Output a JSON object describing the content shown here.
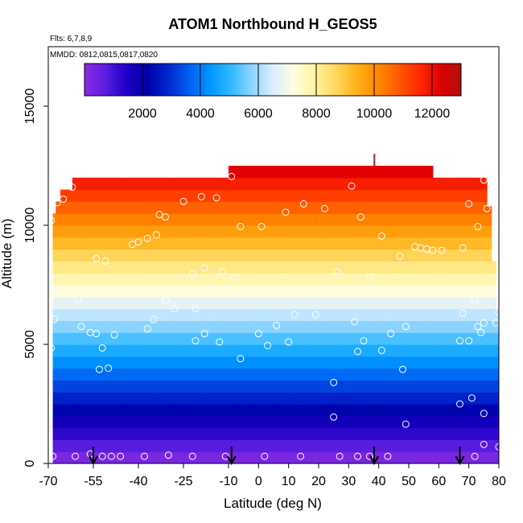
{
  "chart_data": {
    "type": "heatmap",
    "title": "ATOM1 Northbound H_GEOS5",
    "annotations": [
      "Flts: 6,7,8,9",
      "MMDD: 0812,0815,0817,0820"
    ],
    "xlabel": "Latitude (deg N)",
    "ylabel": "Altitude (m)",
    "xlim": [
      -70,
      80
    ],
    "ylim": [
      0,
      17500
    ],
    "x_ticks": [
      -70,
      -55,
      -40,
      -25,
      -10,
      0,
      10,
      20,
      30,
      40,
      50,
      60,
      70,
      80
    ],
    "y_ticks": [
      0,
      5000,
      10000,
      15000
    ],
    "colorbar": {
      "range": [
        0,
        13000
      ],
      "ticks": [
        2000,
        4000,
        6000,
        8000,
        10000,
        12000
      ],
      "colors": [
        "#8a2be2",
        "#5a1ee0",
        "#1f00c8",
        "#0000a8",
        "#0028d0",
        "#0060f0",
        "#0096ff",
        "#30b8ff",
        "#8fd4ff",
        "#d8eeff",
        "#fffde0",
        "#fff3a0",
        "#ffd860",
        "#ffb21a",
        "#ff8a00",
        "#ff5a00",
        "#ff2a00",
        "#e00000",
        "#b01010"
      ]
    },
    "series": [
      {
        "name": "GEOS5 altitude field",
        "value": "altitude",
        "lat_range": [
          -68.5,
          80
        ],
        "altitude_top_by_latitude": [
          {
            "lat": -68.5,
            "top": 10500
          },
          {
            "lat": -67.5,
            "top": 11000
          },
          {
            "lat": -66,
            "top": 11500
          },
          {
            "lat": -62,
            "top": 12000
          },
          {
            "lat": -10,
            "top": 12000
          },
          {
            "lat": -10,
            "top": 12500
          },
          {
            "lat": 58,
            "top": 12500
          },
          {
            "lat": 58,
            "top": 12000
          },
          {
            "lat": 76,
            "top": 12000
          },
          {
            "lat": 76,
            "top": 10800
          },
          {
            "lat": 77.5,
            "top": 8500
          },
          {
            "lat": 79,
            "top": 6500
          },
          {
            "lat": 80,
            "top": 6200
          }
        ]
      },
      {
        "name": "observations",
        "points": [
          {
            "x": -68.5,
            "y": 300
          },
          {
            "x": -61,
            "y": 300
          },
          {
            "x": -56,
            "y": 400
          },
          {
            "x": -52,
            "y": 300
          },
          {
            "x": -49,
            "y": 300
          },
          {
            "x": -46,
            "y": 300
          },
          {
            "x": -38,
            "y": 300
          },
          {
            "x": -30,
            "y": 350
          },
          {
            "x": -22,
            "y": 300
          },
          {
            "x": -11,
            "y": 300
          },
          {
            "x": 2,
            "y": 300
          },
          {
            "x": 14,
            "y": 300
          },
          {
            "x": 27,
            "y": 300
          },
          {
            "x": 33,
            "y": 300
          },
          {
            "x": 37,
            "y": 300
          },
          {
            "x": 43,
            "y": 300
          },
          {
            "x": 72,
            "y": 300
          },
          {
            "x": 75,
            "y": 800
          },
          {
            "x": 80,
            "y": 700
          },
          {
            "x": 25,
            "y": 1950
          },
          {
            "x": 49,
            "y": 1650
          },
          {
            "x": 67,
            "y": 2500
          },
          {
            "x": 71,
            "y": 2750
          },
          {
            "x": 75,
            "y": 2100
          },
          {
            "x": 25,
            "y": 3400
          },
          {
            "x": -50,
            "y": 4000
          },
          {
            "x": -53,
            "y": 3950
          },
          {
            "x": -6,
            "y": 4400
          },
          {
            "x": 48,
            "y": 3950
          },
          {
            "x": -69,
            "y": 4850
          },
          {
            "x": -52,
            "y": 4850
          },
          {
            "x": -21,
            "y": 5150
          },
          {
            "x": -13,
            "y": 5100
          },
          {
            "x": 3,
            "y": 4950
          },
          {
            "x": 10,
            "y": 5100
          },
          {
            "x": 33,
            "y": 4700
          },
          {
            "x": 35,
            "y": 5150
          },
          {
            "x": 41,
            "y": 4750
          },
          {
            "x": 44,
            "y": 5450
          },
          {
            "x": 49,
            "y": 5750
          },
          {
            "x": 67,
            "y": 5150
          },
          {
            "x": 70,
            "y": 5150
          },
          {
            "x": 73,
            "y": 5750
          },
          {
            "x": 74,
            "y": 5500
          },
          {
            "x": 75,
            "y": 5900
          },
          {
            "x": 79,
            "y": 5900
          },
          {
            "x": 80,
            "y": 6350
          },
          {
            "x": -68,
            "y": 6050
          },
          {
            "x": -59,
            "y": 5750
          },
          {
            "x": -56,
            "y": 5500
          },
          {
            "x": -54,
            "y": 5450
          },
          {
            "x": -48,
            "y": 5400
          },
          {
            "x": -37,
            "y": 5650
          },
          {
            "x": -35,
            "y": 6050
          },
          {
            "x": -18,
            "y": 5450
          },
          {
            "x": 0,
            "y": 5450
          },
          {
            "x": 6,
            "y": 5800
          },
          {
            "x": 19,
            "y": 6250
          },
          {
            "x": 32,
            "y": 5950
          },
          {
            "x": -60,
            "y": 6900
          },
          {
            "x": -31,
            "y": 6850
          },
          {
            "x": -28,
            "y": 6500
          },
          {
            "x": -21,
            "y": 6500
          },
          {
            "x": 12,
            "y": 6250
          },
          {
            "x": 68,
            "y": 6300
          },
          {
            "x": 72,
            "y": 6900
          },
          {
            "x": -54,
            "y": 8600
          },
          {
            "x": -51,
            "y": 8500
          },
          {
            "x": -42,
            "y": 9200
          },
          {
            "x": -40,
            "y": 9300
          },
          {
            "x": -37,
            "y": 9450
          },
          {
            "x": -34,
            "y": 9600
          },
          {
            "x": -22,
            "y": 7950
          },
          {
            "x": -18,
            "y": 8200
          },
          {
            "x": -12,
            "y": 8050
          },
          {
            "x": -8,
            "y": 7800
          },
          {
            "x": 26,
            "y": 8050
          },
          {
            "x": 37,
            "y": 7800
          },
          {
            "x": 41,
            "y": 9550
          },
          {
            "x": 47,
            "y": 8700
          },
          {
            "x": 52,
            "y": 9100
          },
          {
            "x": 54,
            "y": 9050
          },
          {
            "x": 56,
            "y": 9000
          },
          {
            "x": 58,
            "y": 8950
          },
          {
            "x": 61,
            "y": 8950
          },
          {
            "x": 68,
            "y": 9050
          },
          {
            "x": -33,
            "y": 10450
          },
          {
            "x": -31,
            "y": 10350
          },
          {
            "x": -6,
            "y": 9950
          },
          {
            "x": 1,
            "y": 9950
          },
          {
            "x": 9,
            "y": 10550
          },
          {
            "x": 15,
            "y": 10900
          },
          {
            "x": 22,
            "y": 10700
          },
          {
            "x": 34,
            "y": 10350
          },
          {
            "x": 70,
            "y": 10900
          },
          {
            "x": 73,
            "y": 9950
          },
          {
            "x": 76,
            "y": 10700
          },
          {
            "x": -69,
            "y": 10200
          },
          {
            "x": -67,
            "y": 10950
          },
          {
            "x": -65,
            "y": 11100
          },
          {
            "x": -62,
            "y": 11600
          },
          {
            "x": -25,
            "y": 11000
          },
          {
            "x": -19,
            "y": 11200
          },
          {
            "x": -14,
            "y": 11150
          },
          {
            "x": 31,
            "y": 11650
          },
          {
            "x": -9,
            "y": 12050
          },
          {
            "x": 75,
            "y": 11900
          }
        ]
      },
      {
        "name": "flight markers",
        "arrows_at_latitude": [
          -55,
          -9,
          38.5,
          67
        ]
      }
    ]
  }
}
